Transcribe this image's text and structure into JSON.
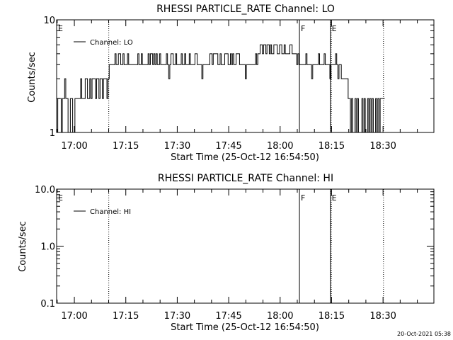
{
  "chart_data": [
    {
      "type": "line",
      "title": "RHESSI PARTICLE_RATE Channel: LO",
      "xlabel": "Start Time (25-Oct-12 16:54:50)",
      "ylabel": "Counts/sec",
      "yscale": "log",
      "ylim": [
        1,
        10
      ],
      "ytick_labels": [
        "1",
        "10"
      ],
      "ytick_values": [
        1,
        10
      ],
      "xlim_min_since_start": [
        0,
        110
      ],
      "xtick_labels": [
        "17:00",
        "17:15",
        "17:30",
        "17:45",
        "18:00",
        "18:15",
        "18:30"
      ],
      "xtick_values": [
        5.17,
        20.17,
        35.17,
        50.17,
        65.17,
        80.17,
        95.17
      ],
      "legend": {
        "entries": [
          "Channel: LO"
        ],
        "position": "top-left"
      },
      "markers": [
        {
          "label": "E",
          "x": 0,
          "style": "solid"
        },
        {
          "label": "",
          "x": 15.2,
          "style": "dotted"
        },
        {
          "label": "F",
          "x": 70.8,
          "style": "solid"
        },
        {
          "label": "E",
          "x": 79.8,
          "style": "solid"
        },
        {
          "label": "",
          "x": 80.1,
          "style": "dotted"
        },
        {
          "label": "",
          "x": 95.3,
          "style": "dotted"
        }
      ],
      "series": [
        {
          "name": "Channel: LO",
          "step_seconds": 20,
          "values": [
            1,
            2,
            2,
            2,
            1,
            2,
            2,
            3,
            2,
            2,
            1,
            1,
            2,
            2,
            1,
            1,
            2,
            2,
            2,
            2,
            2,
            3,
            2,
            2,
            2,
            3,
            3,
            2,
            2,
            3,
            2,
            3,
            3,
            3,
            2,
            3,
            3,
            2,
            3,
            3,
            2,
            3,
            3,
            3,
            2,
            3,
            4,
            4,
            4,
            4,
            4,
            5,
            4,
            4,
            5,
            5,
            4,
            4,
            5,
            4,
            4,
            4,
            5,
            4,
            4,
            4,
            4,
            4,
            4,
            4,
            4,
            5,
            4,
            4,
            5,
            4,
            4,
            4,
            4,
            4,
            5,
            4,
            5,
            5,
            4,
            5,
            4,
            5,
            4,
            4,
            5,
            4,
            4,
            4,
            4,
            4,
            5,
            4,
            3,
            4,
            5,
            5,
            4,
            4,
            5,
            4,
            4,
            4,
            4,
            5,
            4,
            4,
            5,
            4,
            4,
            4,
            5,
            4,
            4,
            4,
            4,
            5,
            5,
            4,
            4,
            4,
            4,
            3,
            4,
            4,
            4,
            4,
            4,
            4,
            5,
            5,
            4,
            5,
            5,
            5,
            5,
            4,
            4,
            5,
            4,
            4,
            4,
            5,
            5,
            5,
            4,
            4,
            5,
            4,
            5,
            4,
            4,
            5,
            5,
            5,
            4,
            4,
            4,
            4,
            4,
            3,
            4,
            4,
            4,
            4,
            4,
            4,
            4,
            4,
            5,
            4,
            5,
            5,
            6,
            6,
            5,
            6,
            6,
            5,
            6,
            6,
            5,
            6,
            5,
            5,
            6,
            6,
            6,
            5,
            5,
            6,
            6,
            5,
            5,
            6,
            5,
            5,
            5,
            5,
            6,
            6,
            5,
            5,
            5,
            5,
            4,
            5,
            4,
            4,
            4,
            4,
            4,
            4,
            5,
            4,
            4,
            4,
            4,
            3,
            4,
            4,
            4,
            4,
            4,
            5,
            4,
            4,
            4,
            4,
            5,
            4,
            4,
            4,
            4,
            3,
            4,
            4,
            4,
            4,
            5,
            4,
            3,
            4,
            4,
            3,
            3,
            3,
            3,
            3,
            3,
            2,
            2,
            1,
            2,
            1,
            1,
            2,
            1,
            2,
            1,
            1,
            1,
            2,
            1,
            2,
            1,
            1,
            2,
            1,
            2,
            1,
            2,
            1,
            1,
            2,
            1,
            2,
            1,
            2,
            2,
            2,
            2
          ]
        }
      ]
    },
    {
      "type": "line",
      "title": "RHESSI PARTICLE_RATE Channel: HI",
      "xlabel": "Start Time (25-Oct-12 16:54:50)",
      "ylabel": "Counts/sec",
      "yscale": "log",
      "ylim": [
        0.1,
        10
      ],
      "ytick_labels": [
        "0.1",
        "1.0",
        "10.0"
      ],
      "ytick_values": [
        0.1,
        1,
        10
      ],
      "xlim_min_since_start": [
        0,
        110
      ],
      "xtick_labels": [
        "17:00",
        "17:15",
        "17:30",
        "17:45",
        "18:00",
        "18:15",
        "18:30"
      ],
      "xtick_values": [
        5.17,
        20.17,
        35.17,
        50.17,
        65.17,
        80.17,
        95.17
      ],
      "legend": {
        "entries": [
          "Channel: HI"
        ],
        "position": "top-left"
      },
      "markers": [
        {
          "label": "E",
          "x": 0,
          "style": "solid"
        },
        {
          "label": "",
          "x": 15.2,
          "style": "dotted"
        },
        {
          "label": "F",
          "x": 70.8,
          "style": "solid"
        },
        {
          "label": "E",
          "x": 79.8,
          "style": "solid"
        },
        {
          "label": "",
          "x": 80.1,
          "style": "dotted"
        },
        {
          "label": "",
          "x": 95.3,
          "style": "dotted"
        }
      ],
      "series": [
        {
          "name": "Channel: HI",
          "step_seconds": 20,
          "values": []
        }
      ]
    }
  ],
  "footer": {
    "timestamp": "20-Oct-2021 05:38"
  }
}
